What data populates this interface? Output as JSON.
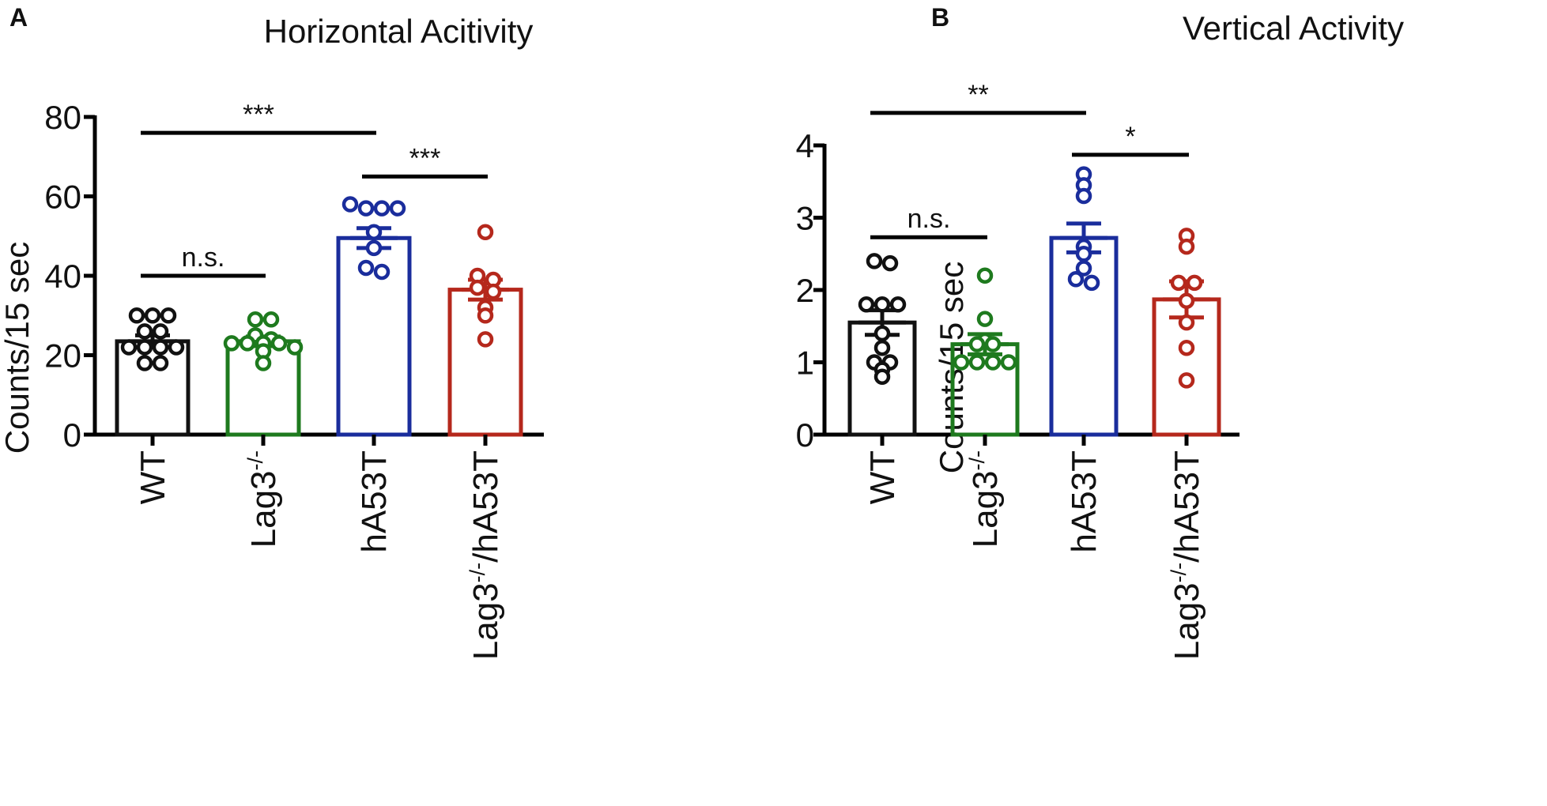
{
  "chart_data": [
    {
      "panel": "A",
      "type": "bar",
      "title": "Horizontal Acitivity",
      "xlabel": "",
      "ylabel": "Counts/15 sec",
      "ylim": [
        0,
        80
      ],
      "yticks": [
        0,
        20,
        40,
        60,
        80
      ],
      "categories": [
        {
          "base": "WT",
          "sup": "",
          "tail": ""
        },
        {
          "base": "Lag3",
          "sup": "-/-",
          "tail": ""
        },
        {
          "base": "hA53T",
          "sup": "",
          "tail": ""
        },
        {
          "base": "Lag3",
          "sup": "-/-",
          "tail": "/hA53T"
        }
      ],
      "colors": [
        "#111111",
        "#1e7a1e",
        "#1a2d9c",
        "#b5281c"
      ],
      "means": [
        23.5,
        23.5,
        49.5,
        36.5
      ],
      "sem": [
        1.5,
        1.2,
        2.5,
        2.5
      ],
      "points": [
        [
          30,
          30,
          30,
          26,
          26,
          22,
          22,
          22,
          22,
          18,
          18
        ],
        [
          29,
          29,
          25,
          24,
          23,
          23,
          23,
          23,
          22,
          21,
          18
        ],
        [
          57,
          57,
          57,
          58,
          51,
          47,
          42,
          41
        ],
        [
          51,
          40,
          39,
          37,
          36,
          32,
          30,
          24
        ]
      ],
      "significance": [
        {
          "from": 0,
          "to": 2,
          "y": 76,
          "label": "***"
        },
        {
          "from": 2,
          "to": 3,
          "y": 65,
          "label": "***"
        },
        {
          "from": 0,
          "to": 1,
          "y": 40,
          "label": "n.s."
        }
      ]
    },
    {
      "panel": "B",
      "type": "bar",
      "title": "Vertical Activity",
      "xlabel": "",
      "ylabel": "Counts/15 sec",
      "ylim": [
        0,
        4
      ],
      "yticks": [
        0,
        1,
        2,
        3,
        4
      ],
      "categories": [
        {
          "base": "WT",
          "sup": "",
          "tail": ""
        },
        {
          "base": "Lag3",
          "sup": "-/-",
          "tail": ""
        },
        {
          "base": "hA53T",
          "sup": "",
          "tail": ""
        },
        {
          "base": "Lag3",
          "sup": "-/-",
          "tail": "/hA53T"
        }
      ],
      "colors": [
        "#111111",
        "#1e7a1e",
        "#1a2d9c",
        "#b5281c"
      ],
      "means": [
        1.55,
        1.25,
        2.72,
        1.87
      ],
      "sem": [
        0.17,
        0.14,
        0.2,
        0.25
      ],
      "points": [
        [
          2.37,
          2.4,
          1.8,
          1.8,
          1.8,
          1.4,
          1.2,
          1.0,
          1.0,
          0.9,
          0.8
        ],
        [
          2.2,
          1.6,
          1.3,
          1.25,
          1.25,
          1.0,
          1.0,
          1.0,
          1.0
        ],
        [
          3.6,
          3.45,
          3.3,
          2.6,
          2.5,
          2.3,
          2.15,
          2.1
        ],
        [
          2.75,
          2.6,
          2.1,
          2.1,
          1.85,
          1.55,
          1.2,
          0.75
        ]
      ],
      "significance": [
        {
          "from": 0,
          "to": 2,
          "y": 4.45,
          "label": "**"
        },
        {
          "from": 2,
          "to": 3,
          "y": 3.87,
          "label": "*"
        },
        {
          "from": 0,
          "to": 1,
          "y": 2.73,
          "label": "n.s."
        }
      ]
    }
  ]
}
